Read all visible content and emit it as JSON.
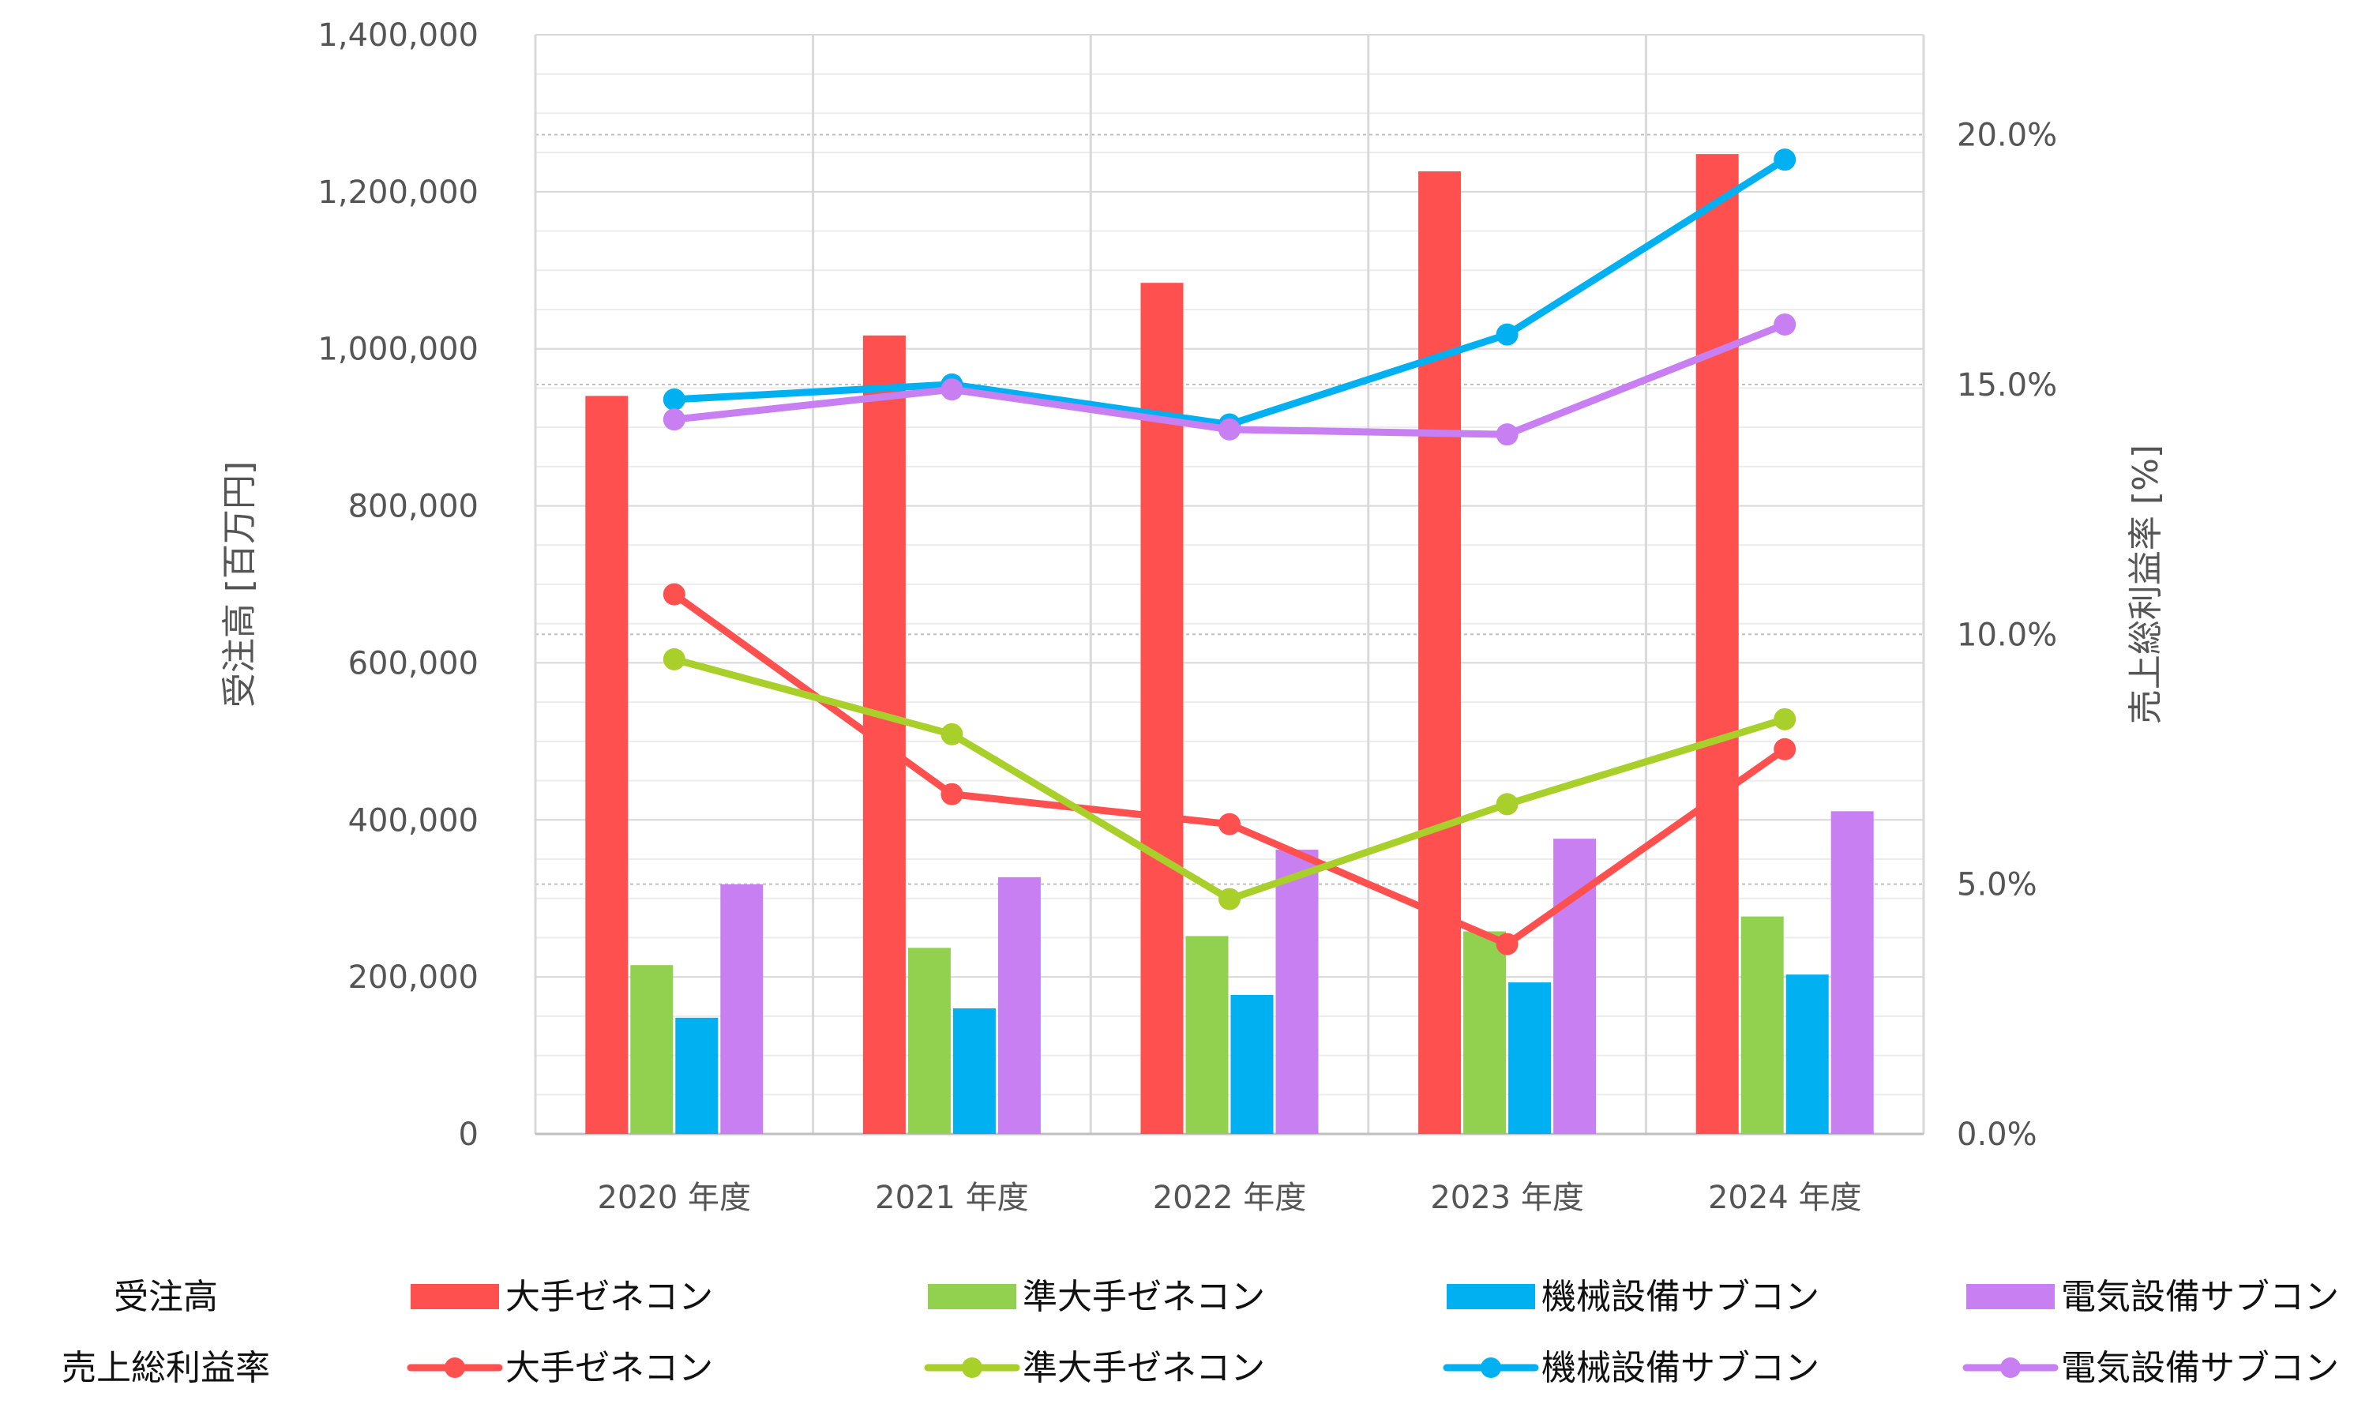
{
  "chart_data": {
    "type": "bar",
    "categories": [
      "2020 年度",
      "2021 年度",
      "2022 年度",
      "2023 年度",
      "2024 年度"
    ],
    "left_axis": {
      "label": "受注高 [百万円]",
      "ylim": [
        0,
        1400000
      ],
      "ticks": [
        0,
        200000,
        400000,
        600000,
        800000,
        1000000,
        1200000,
        1400000
      ],
      "tick_labels": [
        "0",
        "200,000",
        "400,000",
        "600,000",
        "800,000",
        "1,000,000",
        "1,200,000",
        "1,400,000"
      ]
    },
    "right_axis": {
      "label": "売上総利益率 [%]",
      "ylim": [
        0,
        22
      ],
      "ticks": [
        0,
        5,
        10,
        15,
        20
      ],
      "tick_labels": [
        "0.0%",
        "5.0%",
        "10.0%",
        "15.0%",
        "20.0%"
      ]
    },
    "bar_series": [
      {
        "name": "大手ゼネコン",
        "color": "#ff5050",
        "values": [
          940000,
          1017000,
          1084000,
          1226000,
          1248000
        ]
      },
      {
        "name": "準大手ゼネコン",
        "color": "#92d050",
        "values": [
          215000,
          237000,
          252000,
          258000,
          277000
        ]
      },
      {
        "name": "機械設備サブコン",
        "color": "#00b0f0",
        "values": [
          148000,
          160000,
          177000,
          193000,
          203000
        ]
      },
      {
        "name": "電気設備サブコン",
        "color": "#c77ff2",
        "values": [
          318000,
          327000,
          362000,
          376000,
          411000
        ]
      }
    ],
    "line_series": [
      {
        "name": "大手ゼネコン",
        "color": "#ff5050",
        "values": [
          10.8,
          6.8,
          6.2,
          3.8,
          7.7
        ]
      },
      {
        "name": "準大手ゼネコン",
        "color": "#a8cf2a",
        "values": [
          9.5,
          8.0,
          4.7,
          6.6,
          8.3
        ]
      },
      {
        "name": "機械設備サブコン",
        "color": "#00b0f0",
        "values": [
          14.7,
          15.0,
          14.2,
          16.0,
          19.5
        ]
      },
      {
        "name": "電気設備サブコン",
        "color": "#c77ff2",
        "values": [
          14.3,
          14.9,
          14.1,
          14.0,
          16.2
        ]
      }
    ],
    "legend": {
      "placement": "bottom",
      "row_labels": [
        "受注高",
        "売上総利益率"
      ]
    },
    "grid": true
  }
}
